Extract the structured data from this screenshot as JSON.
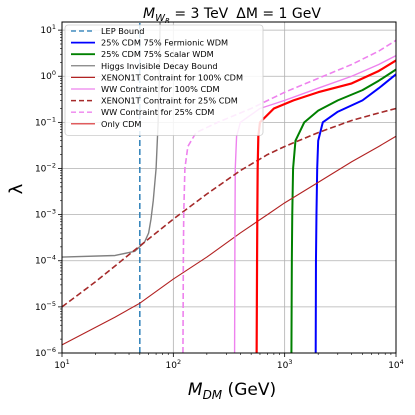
{
  "chart_data": {
    "type": "line",
    "title_parts": {
      "m": "M",
      "m_sub": "W",
      "m_subsub": "R",
      "m_value": " = 3 TeV",
      "delta": "ΔM = 1 GeV"
    },
    "xlabel_parts": {
      "m": "M",
      "sub": "DM",
      "unit": " (GeV)"
    },
    "ylabel": "λ",
    "x_scale": "log",
    "y_scale": "log",
    "xlim": [
      10,
      10000
    ],
    "ylim": [
      1e-06,
      15
    ],
    "x_ticks": [
      {
        "value": 10,
        "base": "10",
        "exp": "1"
      },
      {
        "value": 100,
        "base": "10",
        "exp": "2"
      },
      {
        "value": 1000,
        "base": "10",
        "exp": "3"
      },
      {
        "value": 10000,
        "base": "10",
        "exp": "4"
      }
    ],
    "y_ticks": [
      {
        "value": 1e-06,
        "base": "10",
        "exp": "−6"
      },
      {
        "value": 1e-05,
        "base": "10",
        "exp": "−5"
      },
      {
        "value": 0.0001,
        "base": "10",
        "exp": "−4"
      },
      {
        "value": 0.001,
        "base": "10",
        "exp": "−3"
      },
      {
        "value": 0.01,
        "base": "10",
        "exp": "−2"
      },
      {
        "value": 0.1,
        "base": "10",
        "exp": "−1"
      },
      {
        "value": 1,
        "base": "10",
        "exp": "0"
      },
      {
        "value": 10,
        "base": "10",
        "exp": "1"
      }
    ],
    "grid": true,
    "legend_position": "top-left",
    "series": [
      {
        "name": "LEP Bound",
        "color": "#1f77b4",
        "dash": true,
        "width": 1.4,
        "points": [
          [
            50,
            1e-06
          ],
          [
            50,
            15
          ]
        ]
      },
      {
        "name": "25% CDM 75% Fermionic WDM",
        "color": "#0000ff",
        "dash": false,
        "width": 2.0,
        "points": [
          [
            1900,
            1e-06
          ],
          [
            1910,
            0.0001
          ],
          [
            1930,
            0.001
          ],
          [
            1960,
            0.01
          ],
          [
            2000,
            0.04
          ],
          [
            2200,
            0.1
          ],
          [
            3000,
            0.17
          ],
          [
            5000,
            0.3
          ],
          [
            7000,
            0.55
          ],
          [
            10000,
            1.1
          ]
        ]
      },
      {
        "name": "25% CDM 75% Scalar WDM",
        "color": "#008000",
        "dash": false,
        "width": 2.0,
        "points": [
          [
            1150,
            1e-06
          ],
          [
            1160,
            0.0001
          ],
          [
            1170,
            0.001
          ],
          [
            1190,
            0.01
          ],
          [
            1250,
            0.04
          ],
          [
            1500,
            0.1
          ],
          [
            2000,
            0.18
          ],
          [
            3000,
            0.3
          ],
          [
            5000,
            0.5
          ],
          [
            7000,
            0.8
          ],
          [
            10000,
            1.4
          ]
        ]
      },
      {
        "name": "Higgs Invisible Decay Bound",
        "color": "#808080",
        "dash": false,
        "width": 1.4,
        "points": [
          [
            10,
            0.00012
          ],
          [
            30,
            0.00013
          ],
          [
            45,
            0.00016
          ],
          [
            55,
            0.00025
          ],
          [
            60,
            0.0004
          ],
          [
            63,
            0.0008
          ],
          [
            66,
            0.002
          ],
          [
            70,
            0.01
          ],
          [
            73,
            0.1
          ],
          [
            75,
            1.0
          ],
          [
            76,
            15
          ]
        ]
      },
      {
        "name": "XENON1T Contraint for 100% CDM",
        "color": "#b22222",
        "dash": false,
        "width": 1.1,
        "points": [
          [
            10,
            1.5e-06
          ],
          [
            30,
            6e-06
          ],
          [
            50,
            1.2e-05
          ],
          [
            100,
            4e-05
          ],
          [
            200,
            0.00012
          ],
          [
            400,
            0.0004
          ],
          [
            700,
            0.001
          ],
          [
            1000,
            0.0018
          ],
          [
            2000,
            0.005
          ],
          [
            4000,
            0.014
          ],
          [
            7000,
            0.03
          ],
          [
            10000,
            0.05
          ]
        ]
      },
      {
        "name": "WW Contraint for 100% CDM",
        "color": "#ee82ee",
        "dash": false,
        "width": 1.4,
        "points": [
          [
            355,
            1e-06
          ],
          [
            357,
            0.0001
          ],
          [
            358,
            0.001
          ],
          [
            360,
            0.01
          ],
          [
            370,
            0.05
          ],
          [
            400,
            0.1
          ],
          [
            600,
            0.2
          ],
          [
            1000,
            0.3
          ],
          [
            2000,
            0.55
          ],
          [
            4000,
            1.0
          ],
          [
            7000,
            1.8
          ],
          [
            10000,
            2.8
          ]
        ]
      },
      {
        "name": "XENON1T Contraint for 25% CDM",
        "color": "#a52a2a",
        "dash": true,
        "width": 1.6,
        "points": [
          [
            10,
            1e-05
          ],
          [
            20,
            3.5e-05
          ],
          [
            50,
            0.00021
          ],
          [
            100,
            0.0008
          ],
          [
            200,
            0.0028
          ],
          [
            400,
            0.009
          ],
          [
            700,
            0.02
          ],
          [
            1000,
            0.03
          ],
          [
            2000,
            0.06
          ],
          [
            4000,
            0.11
          ],
          [
            7000,
            0.16
          ],
          [
            10000,
            0.2
          ]
        ]
      },
      {
        "name": "WW Contraint for 25% CDM",
        "color": "#ee82ee",
        "dash": true,
        "width": 1.6,
        "points": [
          [
            122,
            1e-06
          ],
          [
            123,
            0.0001
          ],
          [
            124,
            0.001
          ],
          [
            127,
            0.01
          ],
          [
            135,
            0.03
          ],
          [
            160,
            0.06
          ],
          [
            250,
            0.1
          ],
          [
            500,
            0.2
          ],
          [
            1000,
            0.45
          ],
          [
            2000,
            0.9
          ],
          [
            4000,
            1.8
          ],
          [
            7000,
            3.5
          ],
          [
            10000,
            6
          ]
        ]
      },
      {
        "name": "Only CDM",
        "color": "#d62728",
        "dash": false,
        "width": 1.2,
        "points": []
      }
    ],
    "unlabeled_series": [
      {
        "color": "#ff0000",
        "dash": false,
        "width": 2.2,
        "points": [
          [
            560,
            1e-06
          ],
          [
            565,
            0.0001
          ],
          [
            568,
            0.001
          ],
          [
            572,
            0.01
          ],
          [
            580,
            0.05
          ],
          [
            600,
            0.1
          ],
          [
            800,
            0.2
          ],
          [
            1200,
            0.3
          ],
          [
            2000,
            0.45
          ],
          [
            4000,
            0.7
          ],
          [
            7000,
            1.3
          ],
          [
            10000,
            2.2
          ]
        ]
      }
    ]
  }
}
